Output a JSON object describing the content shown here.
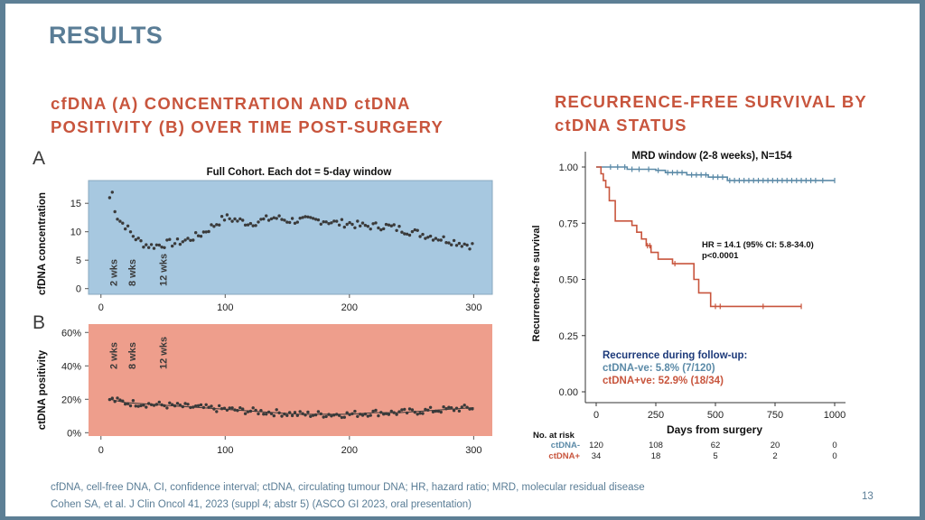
{
  "slide": {
    "title": "RESULTS",
    "left_heading": "cfDNA (A) CONCENTRATION AND ctDNA POSITIVITY (B) OVER TIME POST-SURGERY",
    "right_heading": "RECURRENCE-FREE SURVIVAL BY ctDNA STATUS",
    "panel_a_letter": "A",
    "panel_b_letter": "B",
    "footnote_abbreviations": "cfDNA, cell-free DNA, CI, confidence interval; ctDNA, circulating tumour DNA; HR, hazard ratio; MRD, molecular residual disease",
    "footnote_citation": "Cohen SA, et al. J Clin Oncol 41, 2023 (suppl 4; abstr 5) (ASCO GI 2023, oral presentation)",
    "page_number": "13"
  },
  "colors": {
    "title": "#5a7d96",
    "heading": "#c8553d",
    "panel_a_bg": "#a7c8e0",
    "panel_b_bg": "#ee9e8c",
    "ctdna_negative": "#5b8aa7",
    "ctdna_positive": "#c8553d"
  },
  "chart_data": [
    {
      "type": "scatter",
      "panel": "A",
      "title": "Full Cohort. Each dot = 5-day window",
      "xlabel": "",
      "ylabel": "cfDNA concentration",
      "xlim": [
        -10,
        315
      ],
      "ylim": [
        -1,
        19
      ],
      "x_ticks": [
        {
          "v": 0,
          "label": "0"
        },
        {
          "v": 100,
          "label": "100"
        },
        {
          "v": 200,
          "label": "200"
        },
        {
          "v": 300,
          "label": "300"
        }
      ],
      "y_ticks": [
        {
          "v": 0,
          "label": "0"
        },
        {
          "v": 5,
          "label": "5"
        },
        {
          "v": 10,
          "label": "10"
        },
        {
          "v": 15,
          "label": "15"
        }
      ],
      "annotations": [
        {
          "x": 10,
          "label": "2 wks"
        },
        {
          "x": 25,
          "label": "8 wks"
        },
        {
          "x": 50,
          "label": "12 wks"
        }
      ],
      "trend_x": [
        7,
        9,
        12,
        15,
        20,
        25,
        30,
        35,
        40,
        45,
        50,
        55,
        60,
        70,
        80,
        90,
        100,
        110,
        120,
        130,
        140,
        150,
        160,
        170,
        180,
        190,
        200,
        210,
        220,
        230,
        240,
        250,
        260,
        270,
        280,
        290,
        300
      ],
      "trend_y": [
        16,
        17,
        13,
        12,
        11,
        9.5,
        8.5,
        7.8,
        7.5,
        7.6,
        7.8,
        8,
        8,
        8.6,
        9.5,
        11,
        12.5,
        12,
        11.5,
        12,
        12.5,
        12,
        12,
        12,
        12,
        11.5,
        11.5,
        11,
        11,
        11,
        10.5,
        10,
        9.5,
        9,
        8.5,
        8,
        7.5
      ]
    },
    {
      "type": "scatter",
      "panel": "B",
      "title": "",
      "xlabel": "",
      "ylabel": "ctDNA positivity",
      "xlim": [
        -10,
        315
      ],
      "ylim": [
        -2,
        65
      ],
      "x_ticks": [
        {
          "v": 0,
          "label": "0"
        },
        {
          "v": 100,
          "label": "100"
        },
        {
          "v": 200,
          "label": "200"
        },
        {
          "v": 300,
          "label": "300"
        }
      ],
      "y_ticks": [
        {
          "v": 0,
          "label": "0%"
        },
        {
          "v": 20,
          "label": "20%"
        },
        {
          "v": 40,
          "label": "40%"
        },
        {
          "v": 60,
          "label": "60%"
        }
      ],
      "annotations": [
        {
          "x": 10,
          "label": "2 wks"
        },
        {
          "x": 25,
          "label": "8 wks"
        },
        {
          "x": 50,
          "label": "12 wks"
        }
      ],
      "trend_x": [
        7,
        20,
        40,
        60,
        80,
        100,
        120,
        140,
        160,
        180,
        200,
        220,
        240,
        260,
        280,
        300
      ],
      "trend_y": [
        20,
        18,
        17,
        16,
        15,
        14,
        13,
        12,
        11,
        11,
        11,
        12,
        12,
        13,
        14,
        15
      ]
    },
    {
      "type": "line",
      "panel": "Kaplan-Meier",
      "title": "MRD window (2-8 weeks), N=154",
      "xlabel": "Days from surgery",
      "ylabel": "Recurrence-free survival",
      "xlim": [
        -30,
        1020
      ],
      "ylim": [
        -0.05,
        1.05
      ],
      "x_ticks": [
        {
          "v": 0,
          "label": "0"
        },
        {
          "v": 250,
          "label": "250"
        },
        {
          "v": 500,
          "label": "500"
        },
        {
          "v": 750,
          "label": "750"
        },
        {
          "v": 1000,
          "label": "1000"
        }
      ],
      "y_ticks": [
        {
          "v": 0,
          "label": "0.00"
        },
        {
          "v": 0.25,
          "label": "0.25"
        },
        {
          "v": 0.5,
          "label": "0.50"
        },
        {
          "v": 0.75,
          "label": "0.75"
        },
        {
          "v": 1,
          "label": "1.00"
        }
      ],
      "series": [
        {
          "name": "ctDNA-",
          "x": [
            0,
            45,
            130,
            250,
            290,
            380,
            470,
            550,
            1000
          ],
          "y": [
            1.0,
            1.0,
            0.99,
            0.985,
            0.975,
            0.965,
            0.955,
            0.94,
            0.94
          ],
          "censor_x": [
            60,
            90,
            120,
            150,
            180,
            220,
            260,
            300,
            320,
            340,
            360,
            400,
            420,
            440,
            460,
            490,
            510,
            530,
            560,
            580,
            600,
            620,
            640,
            660,
            680,
            700,
            720,
            740,
            760,
            780,
            800,
            820,
            840,
            860,
            880,
            900,
            920,
            950,
            1000
          ],
          "at_risk": [
            120,
            108,
            62,
            20,
            0
          ]
        },
        {
          "name": "ctDNA+",
          "x": [
            0,
            20,
            30,
            40,
            55,
            80,
            130,
            150,
            170,
            190,
            200,
            210,
            230,
            260,
            320,
            410,
            430,
            460,
            480,
            860
          ],
          "y": [
            1.0,
            0.97,
            0.94,
            0.91,
            0.85,
            0.76,
            0.76,
            0.74,
            0.71,
            0.68,
            0.68,
            0.65,
            0.62,
            0.59,
            0.57,
            0.5,
            0.44,
            0.44,
            0.38,
            0.38
          ],
          "censor_x": [
            215,
            225,
            330,
            500,
            520,
            700,
            860
          ],
          "at_risk": [
            34,
            18,
            5,
            2,
            0
          ]
        }
      ],
      "at_risk_days": [
        0,
        250,
        500,
        750,
        1000
      ],
      "at_risk_title": "No. at risk",
      "annotations": {
        "hr_line1": "HR = 14.1 (95% CI: 5.8-34.0)",
        "hr_line2": "p<0.0001",
        "followup_title": "Recurrence during follow-up:",
        "followup_neg": "ctDNA-ve: 5.8% (7/120)",
        "followup_pos": "ctDNA+ve: 52.9% (18/34)"
      }
    }
  ]
}
